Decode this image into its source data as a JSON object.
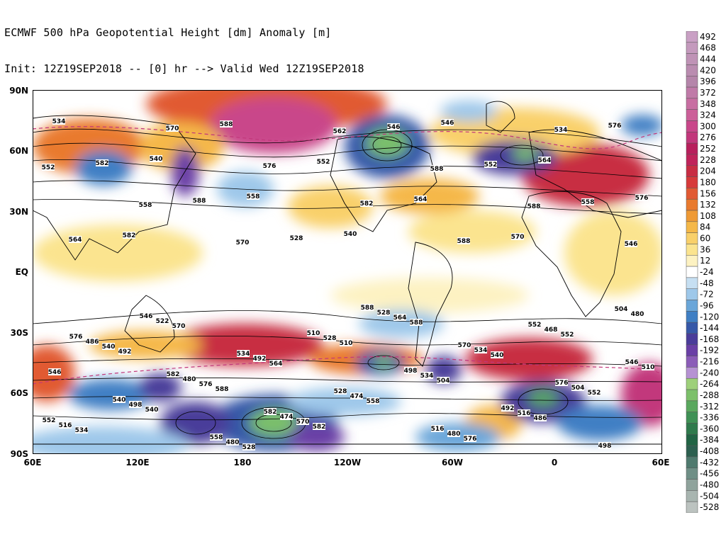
{
  "title": {
    "line1": "ECMWF 500 hPa Geopotential Height [dm] Anomaly [m]",
    "line2": "Init: 12Z19SEP2018 -- [0] hr --> Valid Wed 12Z19SEP2018"
  },
  "lat_labels": [
    "90N",
    "60N",
    "30N",
    "EQ",
    "30S",
    "60S",
    "90S"
  ],
  "lon_labels": [
    "60E",
    "120E",
    "180",
    "120W",
    "60W",
    "0",
    "60E"
  ],
  "colorbar": {
    "levels": [
      "492",
      "468",
      "444",
      "420",
      "396",
      "372",
      "348",
      "324",
      "300",
      "276",
      "252",
      "228",
      "204",
      "180",
      "156",
      "132",
      "108",
      "84",
      "60",
      "36",
      "12",
      "-24",
      "-48",
      "-72",
      "-96",
      "-120",
      "-144",
      "-168",
      "-192",
      "-216",
      "-240",
      "-264",
      "-288",
      "-312",
      "-336",
      "-360",
      "-384",
      "-408",
      "-432",
      "-456",
      "-480",
      "-504",
      "-528"
    ],
    "colors": [
      "#c9a0c4",
      "#c49abd",
      "#bf93b6",
      "#ba8cb0",
      "#b585aa",
      "#c07aa8",
      "#c86ea2",
      "#cc5f99",
      "#c9478a",
      "#c2377b",
      "#b81f5c",
      "#c0235a",
      "#c82d43",
      "#d73a3a",
      "#e15a33",
      "#e97a2e",
      "#ef9a35",
      "#f5b848",
      "#f9d06a",
      "#fbe48f",
      "#fdf2c2",
      "#ffffff",
      "#c6dff2",
      "#9ec8ea",
      "#6aa6d9",
      "#3f7fc4",
      "#3658a8",
      "#4a3c9a",
      "#6a3fa6",
      "#8b5cb8",
      "#b692d3",
      "#9ed07a",
      "#7cc06a",
      "#5aa85e",
      "#3f9155",
      "#2f7a4c",
      "#216444",
      "#2c5f4f",
      "#4f7a6e",
      "#6f8f86",
      "#8fa39c",
      "#a8b5b0",
      "#bcc3c0"
    ]
  },
  "contour_labels": {
    "north": [
      "534",
      "540",
      "558",
      "540",
      "546",
      "564",
      "576",
      "582",
      "588",
      "552",
      "564",
      "570",
      "576",
      "582",
      "588",
      "528",
      "546",
      "552",
      "558",
      "564",
      "570",
      "576",
      "582",
      "588",
      "534",
      "552",
      "558",
      "570",
      "562",
      "588",
      "588",
      "546"
    ],
    "south": [
      "576",
      "582",
      "582",
      "588",
      "570",
      "576",
      "552",
      "546",
      "534",
      "528",
      "516",
      "552",
      "546",
      "540",
      "558",
      "510",
      "498",
      "492",
      "498",
      "486",
      "480",
      "474",
      "528",
      "534",
      "504",
      "516",
      "522",
      "492",
      "474",
      "480",
      "468",
      "510",
      "498",
      "480",
      "528",
      "534",
      "516",
      "504",
      "540",
      "576",
      "570",
      "564",
      "540",
      "552",
      "534",
      "570",
      "564",
      "558",
      "576",
      "552",
      "546",
      "540",
      "528",
      "510",
      "504",
      "486",
      "480",
      "492",
      "588",
      "582",
      "588"
    ]
  }
}
